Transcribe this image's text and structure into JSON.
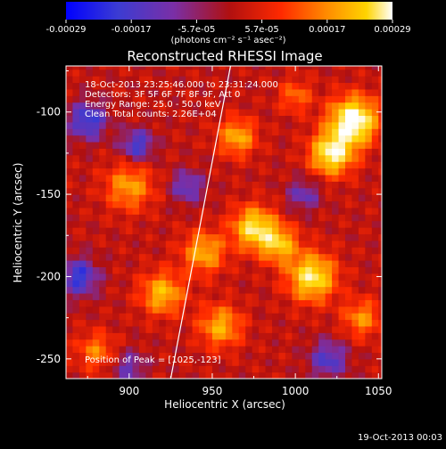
{
  "chart_data": {
    "type": "heatmap",
    "title": "Reconstructed RHESSI Image",
    "xlabel": "Heliocentric X (arcsec)",
    "ylabel": "Heliocentric Y (arcsec)",
    "xlim": [
      862,
      1052
    ],
    "ylim": [
      -262,
      -72
    ],
    "x_ticks": [
      900,
      950,
      1000,
      1050
    ],
    "y_ticks": [
      -100,
      -150,
      -200,
      -250
    ],
    "colorbar": {
      "label": "(photons cm⁻² s⁻¹ asec⁻²)",
      "range": [
        -0.00029,
        0.00029
      ],
      "ticks": [
        "-0.00029",
        "-0.00017",
        "-5.7e-05",
        "5.7e-05",
        "0.00017",
        "0.00029"
      ],
      "colormap": [
        "#0000ff",
        "#3c3cd2",
        "#7a2fa6",
        "#b01010",
        "#ff2a00",
        "#ff8c00",
        "#ffd400",
        "#ffffff"
      ]
    },
    "annotations": [
      "18-Oct-2013 23:25:46.000 to 23:31:24.000",
      "Detectors: 3F 5F 6F 7F 8F 9F, Att 0",
      "Energy Range: 25.0 - 50.0 keV",
      "Clean     Total counts: 2.26E+04"
    ],
    "peak_text": "Position of Peak = [1025,-123]",
    "peak_position": [
      1025,
      -123
    ],
    "limb_line": [
      [
        925,
        -262
      ],
      [
        961,
        -72
      ]
    ],
    "hotspots": [
      {
        "x": 1035,
        "y": -105,
        "amp": 1.0,
        "s": 10
      },
      {
        "x": 1022,
        "y": -125,
        "amp": 0.85,
        "s": 9
      },
      {
        "x": 965,
        "y": -115,
        "amp": 0.55,
        "s": 8
      },
      {
        "x": 975,
        "y": -170,
        "amp": 0.75,
        "s": 9
      },
      {
        "x": 990,
        "y": -180,
        "amp": 0.6,
        "s": 8
      },
      {
        "x": 1010,
        "y": -200,
        "amp": 0.8,
        "s": 10
      },
      {
        "x": 945,
        "y": -185,
        "amp": 0.55,
        "s": 9
      },
      {
        "x": 900,
        "y": -145,
        "amp": 0.5,
        "s": 10
      },
      {
        "x": 920,
        "y": -210,
        "amp": 0.6,
        "s": 9
      },
      {
        "x": 955,
        "y": -230,
        "amp": 0.55,
        "s": 9
      },
      {
        "x": 1040,
        "y": -225,
        "amp": 0.45,
        "s": 8
      },
      {
        "x": 880,
        "y": -245,
        "amp": 0.4,
        "s": 8
      },
      {
        "x": 1000,
        "y": -90,
        "amp": 0.35,
        "s": 7
      }
    ],
    "coldspots": [
      {
        "x": 875,
        "y": -105,
        "amp": 0.55,
        "s": 8
      },
      {
        "x": 905,
        "y": -120,
        "amp": 0.5,
        "s": 7
      },
      {
        "x": 870,
        "y": -200,
        "amp": 0.55,
        "s": 8
      },
      {
        "x": 935,
        "y": -145,
        "amp": 0.4,
        "s": 7
      },
      {
        "x": 1005,
        "y": -150,
        "amp": 0.35,
        "s": 7
      },
      {
        "x": 1020,
        "y": -250,
        "amp": 0.45,
        "s": 8
      },
      {
        "x": 900,
        "y": -255,
        "amp": 0.35,
        "s": 7
      }
    ]
  },
  "footer": {
    "timestamp": "19-Oct-2013 00:03"
  }
}
